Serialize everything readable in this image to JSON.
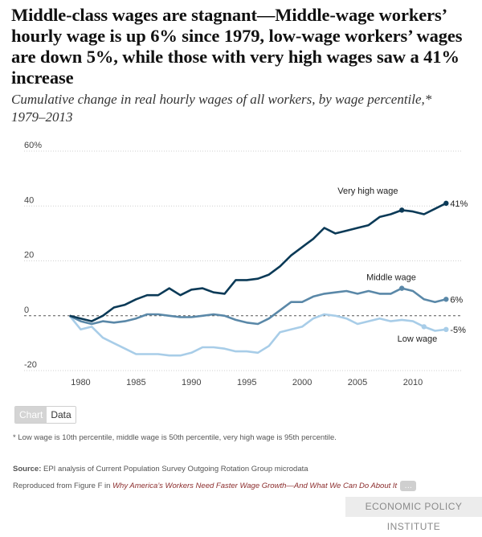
{
  "title": "Middle-class wages are stagnant—Middle-wage workers’ hourly wage is up 6% since 1979, low-wage workers’ wages are down 5%, while those with very high wages saw a 41% increase",
  "subtitle": "Cumulative change in real hourly wages of all workers, by wage percentile,* 1979–2013",
  "tabs": {
    "chart": "Chart",
    "data": "Data"
  },
  "footnote": "* Low wage is 10th percentile, middle wage is 50th percentile, very high wage is 95th percentile.",
  "source_label": "Source:",
  "source_text": " EPI analysis of Current Population Survey Outgoing Rotation Group microdata",
  "repro_prefix": "Reproduced from Figure F in ",
  "repro_title": "Why America’s Workers Need Faster Wage Growth—And What We Can Do About It",
  "more_label": "…",
  "brand": "ECONOMIC POLICY INSTITUTE",
  "colors": {
    "very_high": "#0b3a57",
    "middle": "#5a88a8",
    "low": "#a8cde8"
  },
  "chart_data": {
    "type": "line",
    "x": [
      1979,
      1980,
      1981,
      1982,
      1983,
      1984,
      1985,
      1986,
      1987,
      1988,
      1989,
      1990,
      1991,
      1992,
      1993,
      1994,
      1995,
      1996,
      1997,
      1998,
      1999,
      2000,
      2001,
      2002,
      2003,
      2004,
      2005,
      2006,
      2007,
      2008,
      2009,
      2010,
      2011,
      2012,
      2013
    ],
    "series": [
      {
        "name": "Very high wage",
        "end_label": "41%",
        "color": "#0b3a57",
        "values": [
          0,
          -1,
          -2,
          0,
          3,
          4,
          6,
          7.5,
          7.5,
          10,
          7.5,
          9.5,
          10,
          8.5,
          8,
          13,
          13,
          13.5,
          15,
          18,
          22,
          25,
          28,
          32,
          30,
          31,
          32,
          33,
          36,
          37,
          38.5,
          38,
          37,
          39,
          41
        ]
      },
      {
        "name": "Middle wage",
        "end_label": "6%",
        "color": "#5a88a8",
        "values": [
          0,
          -2,
          -3,
          -2,
          -2.5,
          -2,
          -1,
          0.5,
          0.5,
          0,
          -0.5,
          -0.5,
          0,
          0.5,
          0,
          -1.5,
          -2.5,
          -3,
          -1,
          2,
          5,
          5,
          7,
          8,
          8.5,
          9,
          8,
          9,
          8,
          8,
          10,
          9,
          6,
          5,
          6
        ]
      },
      {
        "name": "Low wage",
        "end_label": "-5%",
        "color": "#a8cde8",
        "values": [
          0,
          -5,
          -4,
          -8,
          -10,
          -12,
          -14,
          -14,
          -14,
          -14.5,
          -14.5,
          -13.5,
          -11.5,
          -11.5,
          -12,
          -13,
          -13,
          -13.5,
          -11,
          -6,
          -5,
          -4,
          -1,
          0.5,
          0,
          -1,
          -3,
          -2,
          -1,
          -2,
          -1.5,
          -2,
          -4,
          -5.5,
          -5
        ]
      }
    ],
    "marked_points": {
      "Very high wage": [
        2009,
        2013
      ],
      "Middle wage": [
        2009,
        2013
      ],
      "Low wage": [
        2011,
        2013
      ]
    },
    "x_ticks": [
      1980,
      1985,
      1990,
      1995,
      2000,
      2005,
      2010
    ],
    "y_ticks": [
      -20,
      0,
      20,
      40
    ],
    "y_ticks_labeled": [
      {
        "value": 60,
        "label": "60%"
      },
      {
        "value": 40,
        "label": "40"
      },
      {
        "value": 20,
        "label": "20"
      },
      {
        "value": 0,
        "label": "0"
      },
      {
        "value": -20,
        "label": "-20"
      }
    ],
    "xlim": [
      1977.5,
      2014.5
    ],
    "ylim": [
      -20,
      60
    ],
    "grid": "horizontal dotted",
    "zero_line": "dashed"
  }
}
